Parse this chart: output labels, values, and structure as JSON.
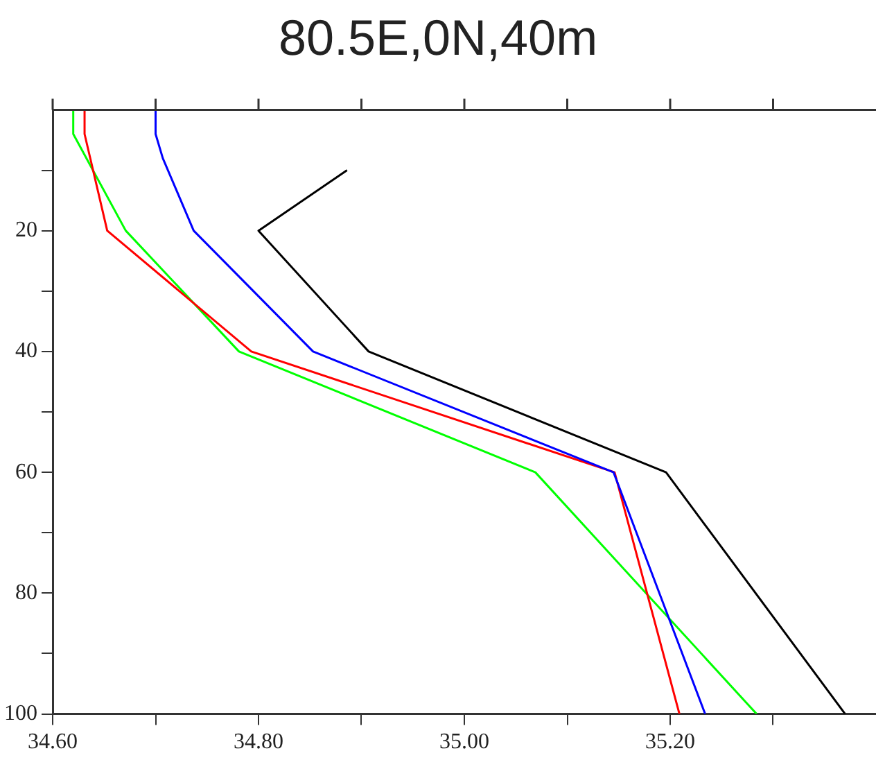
{
  "chart_data": {
    "type": "line",
    "title": "80.5E,0N,40m",
    "marker": "none",
    "line_style": "solid",
    "xlim": [
      34.6,
      35.4
    ],
    "ylim": [
      100,
      0
    ],
    "xticks": [
      {
        "value": 34.6,
        "label": "34.60"
      },
      {
        "value": 34.7,
        "label": null
      },
      {
        "value": 34.8,
        "label": "34.80"
      },
      {
        "value": 34.9,
        "label": null
      },
      {
        "value": 35.0,
        "label": "35.00"
      },
      {
        "value": 35.1,
        "label": null
      },
      {
        "value": 35.2,
        "label": "35.20"
      },
      {
        "value": 35.3,
        "label": null
      }
    ],
    "yticks": [
      {
        "value": 10,
        "label": null
      },
      20,
      {
        "value": 30,
        "label": null
      },
      40,
      {
        "value": 50,
        "label": null
      },
      60,
      {
        "value": 70,
        "label": null
      },
      80,
      {
        "value": 90,
        "label": null
      },
      100
    ],
    "series": [
      {
        "color": "#000000",
        "x": [
          34.886,
          34.8,
          34.907,
          35.196,
          35.37
        ],
        "values": [
          10,
          20,
          40,
          60,
          100
        ]
      },
      {
        "color": "#0000ff",
        "x": [
          34.7,
          34.7,
          34.707,
          34.737,
          34.853,
          35.145,
          35.234
        ],
        "values": [
          0,
          4,
          8,
          20,
          40,
          60,
          100
        ]
      },
      {
        "color": "#ff0000",
        "x": [
          34.631,
          34.631,
          34.653,
          34.793,
          35.146,
          35.209
        ],
        "values": [
          0,
          4,
          20,
          40,
          60,
          100
        ]
      },
      {
        "color": "#00ff00",
        "x": [
          34.62,
          34.62,
          34.671,
          34.781,
          35.069,
          35.284
        ],
        "values": [
          0,
          4,
          20,
          40,
          60,
          100
        ]
      }
    ]
  }
}
